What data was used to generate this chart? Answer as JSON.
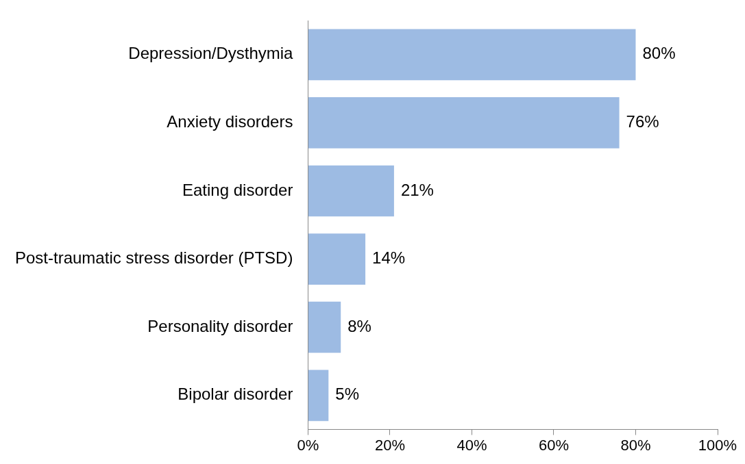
{
  "chart_data": {
    "type": "bar",
    "orientation": "horizontal",
    "categories": [
      "Depression/Dysthymia",
      "Anxiety disorders",
      "Eating disorder",
      "Post-traumatic stress disorder (PTSD)",
      "Personality disorder",
      "Bipolar disorder"
    ],
    "values": [
      80,
      76,
      21,
      14,
      8,
      5
    ],
    "value_labels": [
      "80%",
      "76%",
      "21%",
      "14%",
      "8%",
      "5%"
    ],
    "color": "#9dbbe3",
    "xlim": [
      0,
      100
    ],
    "xticks": [
      {
        "value": 0,
        "label": "0%"
      },
      {
        "value": 20,
        "label": "20%"
      },
      {
        "value": 40,
        "label": "40%"
      },
      {
        "value": 60,
        "label": "60%"
      },
      {
        "value": 80,
        "label": "80%"
      },
      {
        "value": 100,
        "label": "100%"
      }
    ],
    "grid": false,
    "legend": false
  }
}
